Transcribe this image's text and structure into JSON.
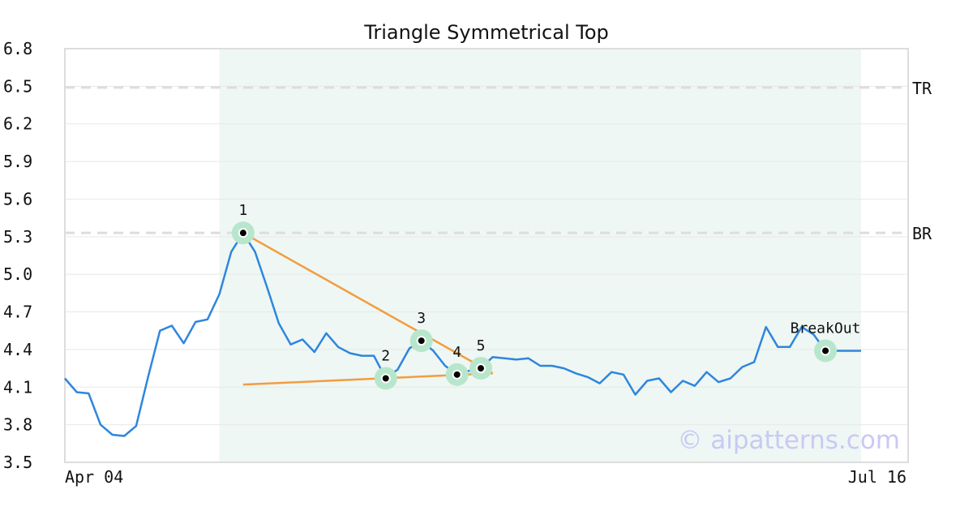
{
  "chart_data": {
    "type": "line",
    "title": "Triangle Symmetrical Top",
    "x_start_label": "Apr 04",
    "x_end_label": "Jul 16",
    "ylim": [
      3.5,
      6.8
    ],
    "y_ticks": [
      "3.5",
      "3.8",
      "4.1",
      "4.4",
      "4.7",
      "5.0",
      "5.3",
      "5.6",
      "5.9",
      "6.2",
      "6.5",
      "6.8"
    ],
    "grid": true,
    "series": [
      {
        "values": [
          4.17,
          4.06,
          4.05,
          3.8,
          3.72,
          3.71,
          3.79,
          4.18,
          4.55,
          4.59,
          4.45,
          4.62,
          4.64,
          4.84,
          5.18,
          5.33,
          5.18,
          4.9,
          4.61,
          4.44,
          4.48,
          4.38,
          4.53,
          4.42,
          4.37,
          4.35,
          4.35,
          4.17,
          4.24,
          4.41,
          4.47,
          4.39,
          4.27,
          4.2,
          4.23,
          4.25,
          4.34,
          4.33,
          4.32,
          4.33,
          4.27,
          4.27,
          4.25,
          4.21,
          4.18,
          4.13,
          4.22,
          4.2,
          4.04,
          4.15,
          4.17,
          4.06,
          4.15,
          4.11,
          4.22,
          4.14,
          4.17,
          4.26,
          4.3,
          4.58,
          4.42,
          4.42,
          4.58,
          4.52,
          4.39,
          4.39,
          4.39,
          4.39
        ]
      }
    ],
    "shaded_region": {
      "start_index": 13,
      "end_index": 67
    },
    "reference_lines": [
      {
        "label": "TR",
        "value": 6.49
      },
      {
        "label": "BR",
        "value": 5.33
      }
    ],
    "pattern_points": [
      {
        "label": "1",
        "index": 15,
        "value": 5.33
      },
      {
        "label": "2",
        "index": 27,
        "value": 4.17
      },
      {
        "label": "3",
        "index": 30,
        "value": 4.47
      },
      {
        "label": "4",
        "index": 33,
        "value": 4.2
      },
      {
        "label": "5",
        "index": 35,
        "value": 4.25
      },
      {
        "label": "BreakOut",
        "index": 64,
        "value": 4.39
      }
    ],
    "trendlines": [
      {
        "from": [
          15,
          5.33
        ],
        "to": [
          36,
          4.21
        ]
      },
      {
        "from": [
          15,
          4.12
        ],
        "to": [
          36,
          4.21
        ]
      }
    ],
    "watermark": "© aipatterns.com",
    "colors": {
      "line": "#2e86de",
      "trendline": "#f39c40",
      "shade": "#eef7f3",
      "marker_halo": "#b8e6cc",
      "marker_dot": "#000000",
      "reference": "#dddddd",
      "grid": "#e8e8e8",
      "frame": "#dddddd"
    }
  }
}
